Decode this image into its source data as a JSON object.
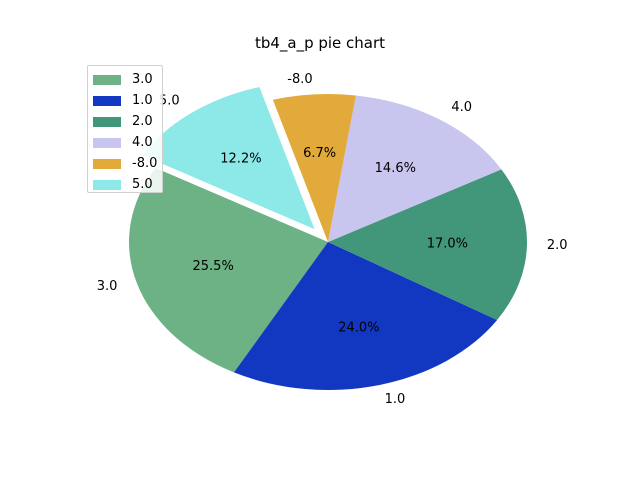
{
  "chart_data": {
    "type": "pie",
    "title": "tb4_a_p pie chart",
    "labels": [
      "3.0",
      "1.0",
      "2.0",
      "4.0",
      "-8.0",
      "5.0"
    ],
    "percentages": [
      "25.5%",
      "24.0%",
      "17.0%",
      "14.6%",
      "6.7%",
      "12.2%"
    ],
    "values": [
      25.5,
      24.0,
      17.0,
      14.6,
      6.7,
      12.2
    ],
    "colors": [
      "#6db285",
      "#1238c1",
      "#42967a",
      "#c8c5ee",
      "#e2a93b",
      "#8de9e7"
    ],
    "exploded": [
      false,
      false,
      false,
      false,
      false,
      true
    ],
    "legend_position": "upper-left"
  }
}
